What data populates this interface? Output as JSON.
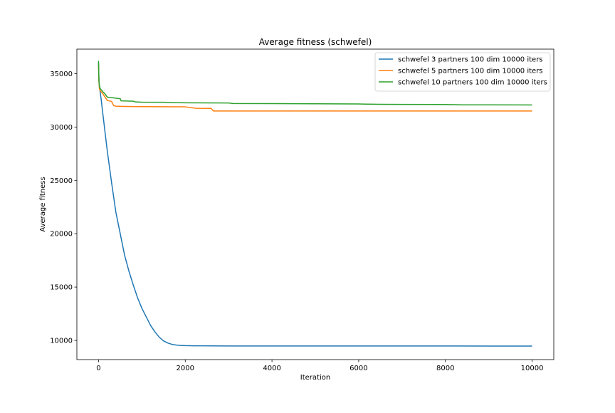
{
  "chart_data": {
    "type": "line",
    "title": "Average fitness (schwefel)",
    "xlabel": "Iteration",
    "ylabel": "Average fitness",
    "xlim": [
      -500,
      10500
    ],
    "ylim": [
      8200,
      37300
    ],
    "xticks": [
      0,
      2000,
      4000,
      6000,
      8000,
      10000
    ],
    "yticks": [
      10000,
      15000,
      20000,
      25000,
      30000,
      35000
    ],
    "grid": false,
    "legend_position": "upper right",
    "series": [
      {
        "name": "schwefel 3 partners 100 dim 10000 iters",
        "color": "#1f77b4",
        "x": [
          0,
          10,
          30,
          60,
          100,
          150,
          200,
          300,
          400,
          500,
          600,
          700,
          800,
          900,
          1000,
          1100,
          1200,
          1300,
          1400,
          1500,
          1600,
          1700,
          1800,
          1900,
          2000,
          2100,
          2200,
          2400,
          2600,
          3000,
          4000,
          5000,
          6000,
          7000,
          8000,
          9000,
          10000
        ],
        "y": [
          36000,
          34300,
          33500,
          32600,
          31200,
          29500,
          27800,
          24800,
          22000,
          20000,
          18000,
          16500,
          15200,
          14000,
          13000,
          12200,
          11400,
          10800,
          10300,
          9950,
          9750,
          9620,
          9560,
          9530,
          9510,
          9500,
          9495,
          9490,
          9485,
          9480,
          9478,
          9476,
          9475,
          9474,
          9473,
          9472,
          9470
        ]
      },
      {
        "name": "schwefel 5 partners 100 dim 10000 iters",
        "color": "#ff7f0e",
        "x": [
          0,
          5,
          10,
          20,
          40,
          60,
          100,
          150,
          200,
          250,
          300,
          350,
          400,
          600,
          800,
          1000,
          1500,
          2000,
          2250,
          2600,
          2650,
          3000,
          4000,
          5000,
          6000,
          7000,
          8000,
          9000,
          10000
        ],
        "y": [
          35800,
          34600,
          34200,
          33600,
          33400,
          33300,
          33100,
          32800,
          32500,
          32450,
          32400,
          32000,
          31950,
          31930,
          31920,
          31910,
          31900,
          31890,
          31750,
          31740,
          31500,
          31500,
          31500,
          31500,
          31500,
          31500,
          31500,
          31500,
          31500
        ]
      },
      {
        "name": "schwefel 10 partners 100 dim 10000 iters",
        "color": "#2ca02c",
        "x": [
          0,
          5,
          10,
          20,
          40,
          60,
          100,
          150,
          200,
          300,
          400,
          500,
          520,
          800,
          850,
          1000,
          1500,
          1800,
          2000,
          2500,
          3000,
          3100,
          4000,
          5000,
          6000,
          6500,
          7000,
          8000,
          8400,
          9000,
          10000
        ],
        "y": [
          36200,
          35000,
          34300,
          33800,
          33600,
          33500,
          33300,
          33100,
          32800,
          32750,
          32700,
          32650,
          32450,
          32420,
          32350,
          32330,
          32320,
          32280,
          32270,
          32260,
          32250,
          32200,
          32190,
          32180,
          32160,
          32130,
          32120,
          32110,
          32080,
          32075,
          32070
        ]
      }
    ]
  }
}
